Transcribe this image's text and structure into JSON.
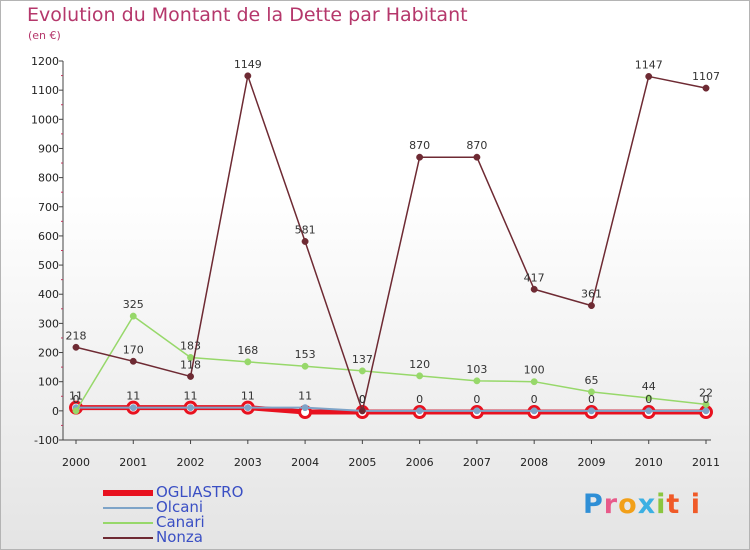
{
  "chart_data": {
    "type": "line",
    "title": "Evolution du Montant de la Dette par Habitant",
    "subtitle": "(en €)",
    "x": [
      "2000",
      "2001",
      "2002",
      "2003",
      "2004",
      "2005",
      "2006",
      "2007",
      "2008",
      "2009",
      "2010",
      "2011"
    ],
    "ylim": [
      -100,
      1200
    ],
    "yticks": [
      -100,
      0,
      100,
      200,
      300,
      400,
      500,
      600,
      700,
      800,
      900,
      1000,
      1100,
      1200
    ],
    "series": [
      {
        "name": "OGLIASTRO",
        "color": "#e8111f",
        "values": [
          11,
          11,
          11,
          11,
          -4,
          -4,
          -4,
          -4,
          -4,
          -4,
          -4,
          -4
        ],
        "labels": false
      },
      {
        "name": "Olcani",
        "color": "#7ea4c8",
        "values": [
          11,
          11,
          11,
          11,
          11,
          0,
          0,
          0,
          0,
          0,
          0,
          0
        ],
        "labels": true
      },
      {
        "name": "Canari",
        "color": "#97d86a",
        "values": [
          0,
          325,
          183,
          168,
          153,
          137,
          120,
          103,
          100,
          65,
          44,
          22
        ],
        "labels": true
      },
      {
        "name": "Nonza",
        "color": "#6e2a33",
        "values": [
          218,
          170,
          118,
          1149,
          581,
          0,
          870,
          870,
          417,
          361,
          1147,
          1107
        ],
        "labels": true
      }
    ]
  },
  "logo": {
    "letters": [
      "P",
      "r",
      "o",
      "x",
      "i",
      "t",
      "i"
    ]
  }
}
